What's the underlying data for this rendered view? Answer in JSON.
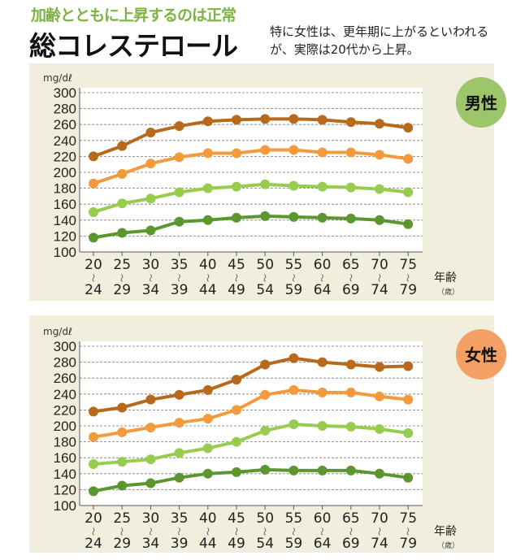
{
  "header": {
    "subtitle": "加齢とともに上昇するのは正常",
    "title": "総コレステロール",
    "description": "特に女性は、更年期に上がるといわれるが、実際は20代から上昇。"
  },
  "chart_data": [
    {
      "type": "line",
      "badge": "男性",
      "badge_color": "#9dc56a",
      "ylabel": "mg/dℓ",
      "xlabel": "年齢",
      "xunit": "（歳）",
      "ylim": [
        100,
        300
      ],
      "yticks": [
        100,
        120,
        140,
        160,
        180,
        200,
        220,
        240,
        260,
        280,
        300
      ],
      "grid": true,
      "categories": [
        [
          "20",
          "24"
        ],
        [
          "25",
          "29"
        ],
        [
          "30",
          "34"
        ],
        [
          "35",
          "39"
        ],
        [
          "40",
          "44"
        ],
        [
          "45",
          "49"
        ],
        [
          "50",
          "54"
        ],
        [
          "55",
          "59"
        ],
        [
          "60",
          "64"
        ],
        [
          "65",
          "69"
        ],
        [
          "70",
          "74"
        ],
        [
          "75",
          "79"
        ]
      ],
      "tilde": "〜",
      "series": [
        {
          "color": "#b86a1c",
          "values": [
            220,
            233,
            250,
            258,
            264,
            266,
            267,
            267,
            266,
            263,
            261,
            256
          ]
        },
        {
          "color": "#f39b3c",
          "values": [
            186,
            198,
            211,
            219,
            224,
            224,
            228,
            228,
            225,
            225,
            222,
            217
          ]
        },
        {
          "color": "#97cc4e",
          "values": [
            150,
            161,
            167,
            175,
            180,
            182,
            185,
            183,
            182,
            181,
            179,
            175
          ]
        },
        {
          "color": "#5b972e",
          "values": [
            118,
            124,
            127,
            138,
            140,
            143,
            145,
            144,
            143,
            142,
            140,
            135
          ]
        }
      ]
    },
    {
      "type": "line",
      "badge": "女性",
      "badge_color": "#f4a064",
      "ylabel": "mg/dℓ",
      "xlabel": "年齢",
      "xunit": "（歳）",
      "ylim": [
        100,
        300
      ],
      "yticks": [
        100,
        120,
        140,
        160,
        180,
        200,
        220,
        240,
        260,
        280,
        300
      ],
      "grid": true,
      "categories": [
        [
          "20",
          "24"
        ],
        [
          "25",
          "29"
        ],
        [
          "30",
          "34"
        ],
        [
          "35",
          "39"
        ],
        [
          "40",
          "44"
        ],
        [
          "45",
          "49"
        ],
        [
          "50",
          "54"
        ],
        [
          "55",
          "59"
        ],
        [
          "60",
          "64"
        ],
        [
          "65",
          "69"
        ],
        [
          "70",
          "74"
        ],
        [
          "75",
          "79"
        ]
      ],
      "tilde": "〜",
      "series": [
        {
          "color": "#b86a1c",
          "values": [
            218,
            223,
            233,
            239,
            245,
            258,
            277,
            285,
            280,
            277,
            274,
            275
          ]
        },
        {
          "color": "#f39b3c",
          "values": [
            186,
            192,
            198,
            204,
            209,
            220,
            239,
            245,
            242,
            242,
            237,
            233
          ]
        },
        {
          "color": "#97cc4e",
          "values": [
            152,
            155,
            158,
            166,
            172,
            180,
            194,
            202,
            200,
            199,
            196,
            191
          ]
        },
        {
          "color": "#5b972e",
          "values": [
            118,
            125,
            128,
            135,
            140,
            142,
            145,
            144,
            144,
            144,
            140,
            135
          ]
        }
      ]
    }
  ]
}
